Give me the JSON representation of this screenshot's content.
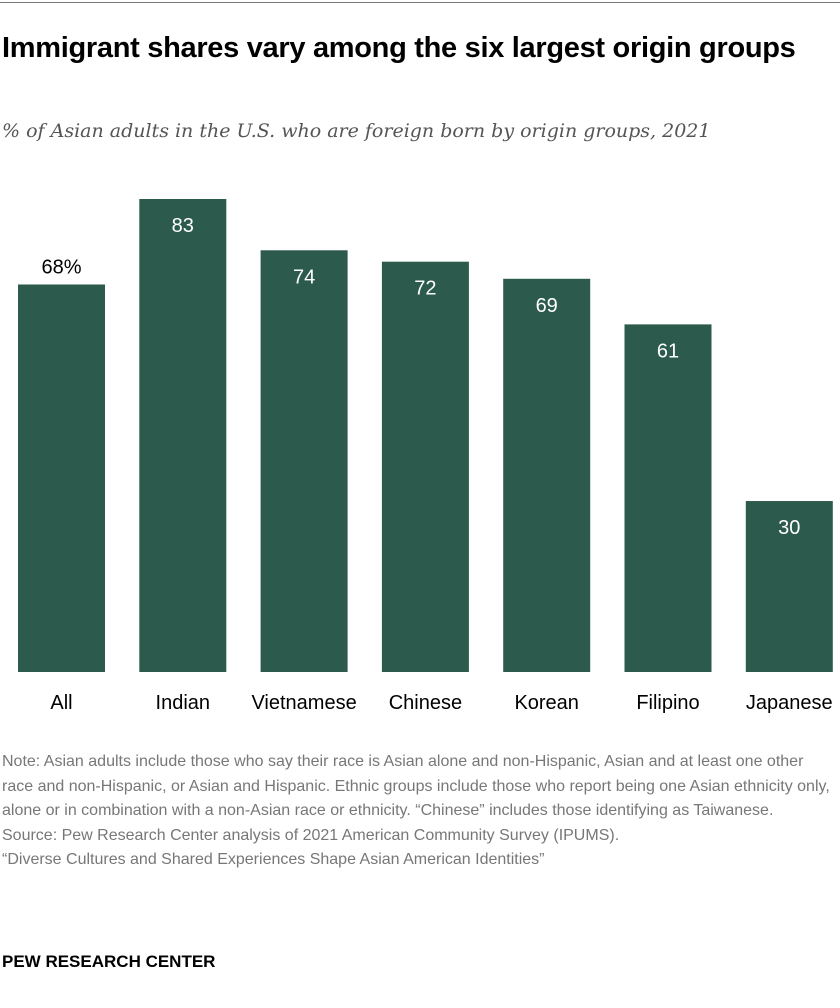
{
  "chart_data": {
    "type": "bar",
    "title": "Immigrant shares vary among the six largest origin groups",
    "subtitle": "% of Asian adults in the U.S. who are foreign born by origin groups, 2021",
    "categories": [
      "All",
      "Indian",
      "Vietnamese",
      "Chinese",
      "Korean",
      "Filipino",
      "Japanese"
    ],
    "values": [
      68,
      83,
      74,
      72,
      69,
      61,
      30
    ],
    "data_labels": [
      "68%",
      "83",
      "74",
      "72",
      "69",
      "61",
      "30"
    ],
    "ylim": [
      0,
      83
    ],
    "grid": false,
    "color": "#2c5a4c"
  },
  "notes": [
    "Note: Asian adults include those who say their race is Asian alone and non-Hispanic, Asian and at least one other race and non-Hispanic, or Asian and Hispanic. Ethnic groups include those who report being one Asian ethnicity only, alone or in combination with a non-Asian race or ethnicity. “Chinese” includes those identifying as Taiwanese.",
    "Source: Pew Research Center analysis of 2021 American Community Survey (IPUMS).",
    "“Diverse Cultures and Shared Experiences Shape Asian American Identities”"
  ],
  "brand": "PEW RESEARCH CENTER"
}
